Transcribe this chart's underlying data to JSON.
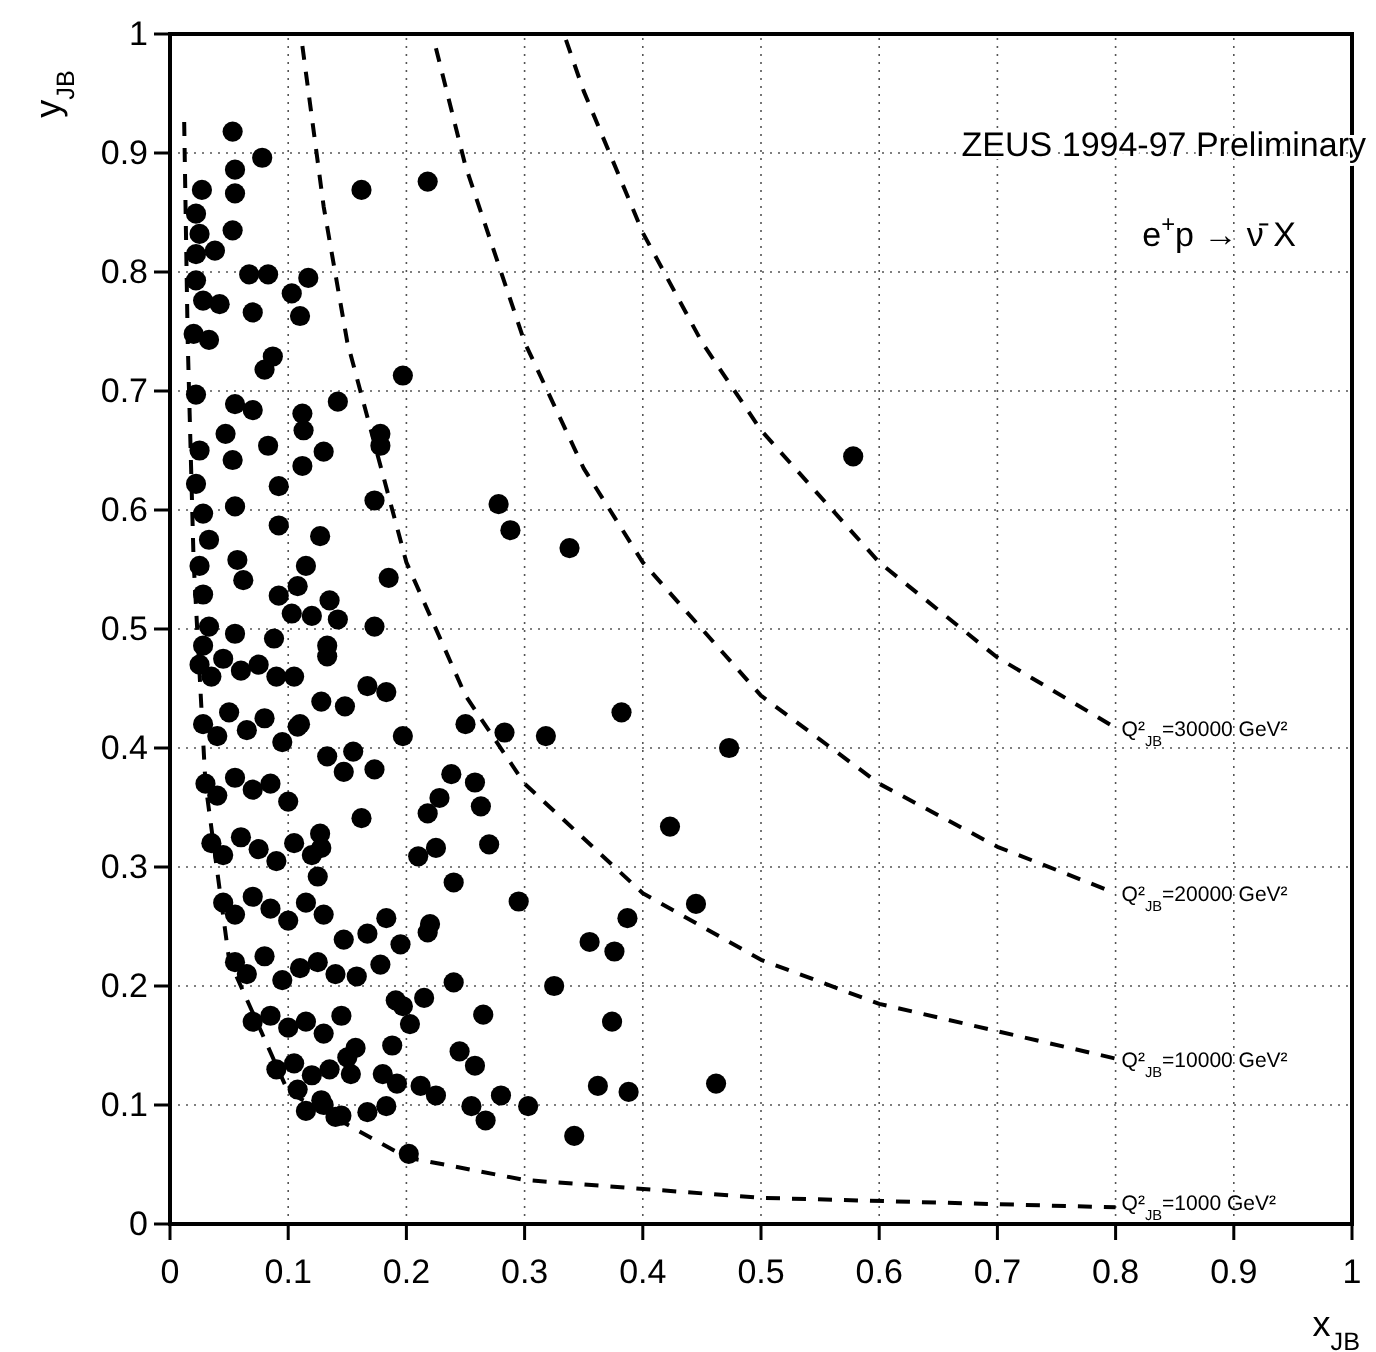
{
  "chart_data": {
    "type": "scatter",
    "xlabel": "x$_{JB}$",
    "ylabel": "y$_{JB}$",
    "annotations": [
      "ZEUS 1994-97 Preliminary",
      "e$^{+}$p → ν̄ X"
    ],
    "xlim": [
      0,
      1
    ],
    "ylim": [
      0,
      1
    ],
    "xticks": [
      0,
      0.1,
      0.2,
      0.3,
      0.4,
      0.5,
      0.6,
      0.7,
      0.8,
      0.9,
      1
    ],
    "yticks": [
      0,
      0.1,
      0.2,
      0.3,
      0.4,
      0.5,
      0.6,
      0.7,
      0.8,
      0.9,
      1
    ],
    "grid": true,
    "marker": "circle",
    "series": [
      {
        "color": "#000000",
        "x": [
          0.578,
          0.338,
          0.382,
          0.473,
          0.423,
          0.445,
          0.387,
          0.355,
          0.376,
          0.325,
          0.374,
          0.362,
          0.388,
          0.462,
          0.342,
          0.053,
          0.078,
          0.055,
          0.055,
          0.162,
          0.218,
          0.027,
          0.022,
          0.025,
          0.053,
          0.038,
          0.022,
          0.067,
          0.083,
          0.103,
          0.117,
          0.07,
          0.11,
          0.022,
          0.028,
          0.042,
          0.02,
          0.033,
          0.087,
          0.08,
          0.197,
          0.142,
          0.022,
          0.055,
          0.07,
          0.047,
          0.112,
          0.113,
          0.083,
          0.13,
          0.178,
          0.178,
          0.112,
          0.025,
          0.053,
          0.022,
          0.092,
          0.173,
          0.278,
          0.288,
          0.055,
          0.028,
          0.092,
          0.033,
          0.127,
          0.057,
          0.115,
          0.025,
          0.185,
          0.062,
          0.108,
          0.028,
          0.092,
          0.135,
          0.103,
          0.12,
          0.142,
          0.173,
          0.033,
          0.055,
          0.088,
          0.133,
          0.028,
          0.133,
          0.105,
          0.167,
          0.183,
          0.128,
          0.148,
          0.108,
          0.197,
          0.25,
          0.283,
          0.318,
          0.133,
          0.155,
          0.147,
          0.173,
          0.238,
          0.258,
          0.228,
          0.263,
          0.218,
          0.162,
          0.27,
          0.225,
          0.21,
          0.127,
          0.128,
          0.125,
          0.24,
          0.295,
          0.183,
          0.22,
          0.167,
          0.195,
          0.218,
          0.147,
          0.178,
          0.158,
          0.24,
          0.191,
          0.197,
          0.215,
          0.265,
          0.203,
          0.245,
          0.258,
          0.157,
          0.188,
          0.153,
          0.18,
          0.192,
          0.212,
          0.225,
          0.255,
          0.267,
          0.28,
          0.303,
          0.202,
          0.167,
          0.145,
          0.128,
          0.108,
          0.183,
          0.025,
          0.035,
          0.045,
          0.06,
          0.075,
          0.09,
          0.028,
          0.04,
          0.05,
          0.065,
          0.08,
          0.095,
          0.11,
          0.03,
          0.04,
          0.055,
          0.07,
          0.085,
          0.1,
          0.035,
          0.045,
          0.06,
          0.075,
          0.09,
          0.105,
          0.12,
          0.045,
          0.055,
          0.07,
          0.085,
          0.1,
          0.115,
          0.13,
          0.055,
          0.065,
          0.08,
          0.095,
          0.11,
          0.125,
          0.14,
          0.07,
          0.085,
          0.1,
          0.115,
          0.13,
          0.145,
          0.09,
          0.105,
          0.12,
          0.135,
          0.15,
          0.115,
          0.13,
          0.14
        ],
        "values": [
          0.645,
          0.568,
          0.43,
          0.4,
          0.334,
          0.269,
          0.257,
          0.237,
          0.229,
          0.2,
          0.17,
          0.116,
          0.111,
          0.118,
          0.074,
          0.918,
          0.896,
          0.886,
          0.866,
          0.869,
          0.876,
          0.869,
          0.849,
          0.832,
          0.835,
          0.818,
          0.815,
          0.798,
          0.798,
          0.782,
          0.795,
          0.766,
          0.763,
          0.793,
          0.776,
          0.773,
          0.748,
          0.743,
          0.729,
          0.718,
          0.713,
          0.691,
          0.697,
          0.689,
          0.684,
          0.664,
          0.681,
          0.667,
          0.654,
          0.649,
          0.664,
          0.654,
          0.637,
          0.65,
          0.642,
          0.622,
          0.62,
          0.608,
          0.605,
          0.583,
          0.603,
          0.597,
          0.587,
          0.575,
          0.578,
          0.558,
          0.553,
          0.553,
          0.543,
          0.541,
          0.536,
          0.529,
          0.528,
          0.524,
          0.513,
          0.511,
          0.508,
          0.502,
          0.502,
          0.496,
          0.492,
          0.486,
          0.486,
          0.477,
          0.46,
          0.452,
          0.447,
          0.439,
          0.435,
          0.418,
          0.41,
          0.42,
          0.413,
          0.41,
          0.393,
          0.397,
          0.38,
          0.382,
          0.378,
          0.371,
          0.358,
          0.351,
          0.345,
          0.341,
          0.319,
          0.316,
          0.309,
          0.328,
          0.316,
          0.292,
          0.287,
          0.271,
          0.257,
          0.252,
          0.244,
          0.235,
          0.245,
          0.239,
          0.218,
          0.208,
          0.203,
          0.188,
          0.183,
          0.19,
          0.176,
          0.168,
          0.145,
          0.133,
          0.148,
          0.15,
          0.126,
          0.126,
          0.118,
          0.116,
          0.108,
          0.099,
          0.087,
          0.108,
          0.099,
          0.059,
          0.094,
          0.091,
          0.104,
          0.113,
          0.099,
          0.47,
          0.46,
          0.475,
          0.465,
          0.47,
          0.46,
          0.42,
          0.41,
          0.43,
          0.415,
          0.425,
          0.405,
          0.42,
          0.37,
          0.36,
          0.375,
          0.365,
          0.37,
          0.355,
          0.32,
          0.31,
          0.325,
          0.315,
          0.305,
          0.32,
          0.31,
          0.27,
          0.26,
          0.275,
          0.265,
          0.255,
          0.27,
          0.26,
          0.22,
          0.21,
          0.225,
          0.205,
          0.215,
          0.22,
          0.21,
          0.17,
          0.175,
          0.165,
          0.17,
          0.16,
          0.175,
          0.13,
          0.135,
          0.125,
          0.13,
          0.14,
          0.095,
          0.1,
          0.09
        ]
      },
      {
        "type": "line",
        "name": "Q²$_{JB}$=1000 GeV²",
        "color": "#000000",
        "marker": "none",
        "line_style": "dashed",
        "x": [
          0.012,
          0.015,
          0.02,
          0.03,
          0.05,
          0.1,
          0.2,
          0.3,
          0.5,
          0.8
        ],
        "values": [
          0.926,
          0.741,
          0.556,
          0.37,
          0.222,
          0.111,
          0.056,
          0.037,
          0.022,
          0.014
        ]
      },
      {
        "type": "line",
        "name": "Q²$_{JB}$=10000 GeV²",
        "color": "#000000",
        "marker": "none",
        "line_style": "dashed",
        "x": [
          0.112,
          0.13,
          0.15,
          0.2,
          0.25,
          0.3,
          0.4,
          0.5,
          0.6,
          0.8
        ],
        "values": [
          0.99,
          0.855,
          0.741,
          0.556,
          0.444,
          0.37,
          0.278,
          0.222,
          0.185,
          0.139
        ]
      },
      {
        "type": "line",
        "name": "Q²$_{JB}$=20000 GeV²",
        "color": "#000000",
        "marker": "none",
        "line_style": "dashed",
        "x": [
          0.225,
          0.25,
          0.3,
          0.35,
          0.4,
          0.5,
          0.6,
          0.7,
          0.8
        ],
        "values": [
          0.988,
          0.889,
          0.741,
          0.635,
          0.556,
          0.444,
          0.37,
          0.317,
          0.278
        ]
      },
      {
        "type": "line",
        "name": "Q²$_{JB}$=30000 GeV²",
        "color": "#000000",
        "marker": "none",
        "line_style": "dashed",
        "x": [
          0.335,
          0.35,
          0.4,
          0.45,
          0.5,
          0.6,
          0.7,
          0.8
        ],
        "values": [
          0.995,
          0.952,
          0.833,
          0.741,
          0.667,
          0.556,
          0.476,
          0.417
        ]
      }
    ]
  }
}
